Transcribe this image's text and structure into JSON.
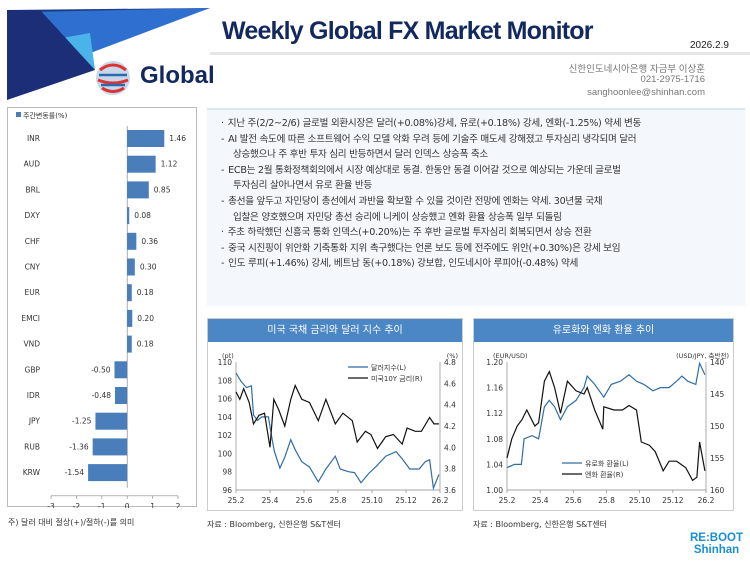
{
  "header": {
    "title": "Weekly Global FX Market Monitor",
    "date": "2026.2.9",
    "section": "Global",
    "contact": [
      "신한인도네시아은행 자금부 이상훈",
      "021-2975-1716",
      "sanghoonlee@shinhan.com"
    ]
  },
  "colors": {
    "navy": "#13285e",
    "bar": "#4a7ebb",
    "header_blue": "#4b86c5",
    "line_blue": "#2f6ea6",
    "line_black": "#111111"
  },
  "summary": [
    {
      "bullet": "·",
      "text": "지난 주(2/2~2/6) 글로벌 외환시장은 달러(+0.08%)강세, 유로(+0.18%) 강세, 엔화(-1.25%) 약세 변동"
    },
    {
      "bullet": "-",
      "text": "AI 발전 속도에 따른 소프트웨어 수익 모델 악화 우려 등에 기술주 매도세 강해졌고 투자심리 냉각되며 달러"
    },
    {
      "bullet": "",
      "text": "상승했으나 주 후반 투자 심리 반등하면서 달러 인덱스 상승폭 축소"
    },
    {
      "bullet": "-",
      "text": "ECB는 2월 통화정책회의에서 시장 예상대로 동결. 한동안 동결 이어갈 것으로 예상되는 가운데 글로벌"
    },
    {
      "bullet": "",
      "text": "투자심리 살아나면서 유로 환율 반등"
    },
    {
      "bullet": "-",
      "text": "총선을 앞두고 자민당이 총선에서 과반을 확보할 수 있을 것이란 전망에 엔화는 약세. 30년물 국채"
    },
    {
      "bullet": "",
      "text": "입찰은 양호했으며 자민당 총선 승리에 니케이 상승했고 엔화 환율 상승폭 일부 되돌림"
    },
    {
      "bullet": "·",
      "text": "주초 하락했던 신흥국 통화 인덱스(+0.20%)는 주 후반 글로벌 투자심리 회복되면서 상승 전환"
    },
    {
      "bullet": "-",
      "text": "중국 시진핑이 위안화 기축통화 지위 촉구했다는 언론 보도 등에 전주에도 위안(+0.30%)은 강세 보임"
    },
    {
      "bullet": "-",
      "text": "인도 루피(+1.46%) 강세, 베트남 동(+0.18%) 강보합, 인도네시아 루피아(-0.48%) 약세"
    }
  ],
  "left_note": "주) 달러 대비 절상(+)/절하(-)를 의미",
  "source": "자료 : Bloomberg, 신한은행 S&T센터",
  "logo": [
    "RE:BOOT",
    "Shinhan"
  ],
  "chart_data": [
    {
      "type": "bar",
      "orientation": "horizontal",
      "legend": "주간변동률(%)",
      "legend_position": "top-left",
      "categories": [
        "INR",
        "AUD",
        "BRL",
        "DXY",
        "CHF",
        "CNY",
        "EUR",
        "EMCI",
        "VND",
        "GBP",
        "IDR",
        "JPY",
        "RUB",
        "KRW"
      ],
      "values": [
        1.46,
        1.12,
        0.85,
        0.08,
        0.36,
        0.3,
        0.18,
        0.2,
        0.18,
        -0.5,
        -0.48,
        -1.25,
        -1.36,
        -1.54
      ],
      "labels": [
        "1.46",
        "1.12",
        "0.85",
        "0.08",
        "0.36",
        "0.30",
        "0.18",
        "0.20",
        "0.18",
        "-0.50",
        "-0.48",
        "-1.25",
        "-1.36",
        "-1.54"
      ],
      "xlim": [
        -3,
        2
      ],
      "xticks": [
        "-3",
        "-2",
        "-1",
        "0",
        "1",
        "2"
      ],
      "grid": false
    },
    {
      "type": "line",
      "title": "미국 국채 금리와 달러 지수 추이",
      "ylabel_left": "(pt)",
      "ylabel_right": "(%)",
      "ylim_left": [
        96,
        110
      ],
      "ylim_right": [
        3.6,
        4.8
      ],
      "yticks_left": [
        "110",
        "108",
        "106",
        "104",
        "102",
        "100",
        "98",
        "96"
      ],
      "yticks_right": [
        "4.8",
        "4.6",
        "4.4",
        "4.2",
        "4.0",
        "3.8",
        "3.6"
      ],
      "xticks": [
        "25.2",
        "25.4",
        "25.6",
        "25.8",
        "25.10",
        "25.12",
        "26.2"
      ],
      "legend_position": "top-right",
      "series": [
        {
          "name": "달러지수(L)",
          "axis": "left",
          "color": "#2f6ea6",
          "points": [
            [
              "2025-02-01",
              108.8
            ],
            [
              "2025-02-10",
              107.9
            ],
            [
              "2025-02-20",
              107.2
            ],
            [
              "2025-03-01",
              107.4
            ],
            [
              "2025-03-05",
              104.2
            ],
            [
              "2025-03-12",
              103.6
            ],
            [
              "2025-03-20",
              104.0
            ],
            [
              "2025-04-01",
              104.0
            ],
            [
              "2025-04-08",
              101.5
            ],
            [
              "2025-04-12",
              100.2
            ],
            [
              "2025-04-22",
              98.4
            ],
            [
              "2025-05-01",
              99.6
            ],
            [
              "2025-05-12",
              101.5
            ],
            [
              "2025-05-20",
              100.4
            ],
            [
              "2025-06-01",
              99.1
            ],
            [
              "2025-06-15",
              98.5
            ],
            [
              "2025-07-01",
              96.9
            ],
            [
              "2025-07-15",
              98.3
            ],
            [
              "2025-08-01",
              99.7
            ],
            [
              "2025-08-10",
              98.3
            ],
            [
              "2025-08-25",
              98.0
            ],
            [
              "2025-09-05",
              97.9
            ],
            [
              "2025-09-17",
              96.8
            ],
            [
              "2025-10-01",
              97.8
            ],
            [
              "2025-10-15",
              98.6
            ],
            [
              "2025-11-01",
              99.7
            ],
            [
              "2025-11-20",
              100.2
            ],
            [
              "2025-12-01",
              99.4
            ],
            [
              "2025-12-15",
              98.3
            ],
            [
              "2026-01-01",
              98.3
            ],
            [
              "2026-01-12",
              99.1
            ],
            [
              "2026-01-20",
              99.3
            ],
            [
              "2026-01-27",
              96.2
            ],
            [
              "2026-02-06",
              97.7
            ]
          ]
        },
        {
          "name": "미국10Y 금리(R)",
          "axis": "right",
          "color": "#111111",
          "points": [
            [
              "2025-02-01",
              4.52
            ],
            [
              "2025-02-08",
              4.45
            ],
            [
              "2025-02-15",
              4.55
            ],
            [
              "2025-02-25",
              4.42
            ],
            [
              "2025-03-05",
              4.22
            ],
            [
              "2025-03-15",
              4.3
            ],
            [
              "2025-03-25",
              4.32
            ],
            [
              "2025-04-04",
              4.0
            ],
            [
              "2025-04-11",
              4.45
            ],
            [
              "2025-04-20",
              4.35
            ],
            [
              "2025-05-01",
              4.2
            ],
            [
              "2025-05-12",
              4.45
            ],
            [
              "2025-05-20",
              4.58
            ],
            [
              "2025-06-01",
              4.45
            ],
            [
              "2025-06-15",
              4.42
            ],
            [
              "2025-07-01",
              4.25
            ],
            [
              "2025-07-15",
              4.45
            ],
            [
              "2025-08-01",
              4.22
            ],
            [
              "2025-08-15",
              4.32
            ],
            [
              "2025-09-01",
              4.25
            ],
            [
              "2025-09-10",
              4.05
            ],
            [
              "2025-09-25",
              4.15
            ],
            [
              "2025-10-05",
              4.12
            ],
            [
              "2025-10-17",
              3.99
            ],
            [
              "2025-11-01",
              4.1
            ],
            [
              "2025-11-15",
              4.12
            ],
            [
              "2025-12-01",
              4.03
            ],
            [
              "2025-12-10",
              4.18
            ],
            [
              "2025-12-25",
              4.15
            ],
            [
              "2026-01-05",
              4.15
            ],
            [
              "2026-01-20",
              4.28
            ],
            [
              "2026-01-28",
              4.22
            ],
            [
              "2026-02-06",
              4.22
            ]
          ]
        }
      ]
    },
    {
      "type": "line",
      "title": "유로화와 엔화 환율 추이",
      "ylabel_left": "(EUR/USD)",
      "ylabel_right": "(USD/JPY, 축반전)",
      "ylim_left": [
        1.0,
        1.2
      ],
      "ylim_right": [
        160,
        140
      ],
      "right_axis_inverted": true,
      "yticks_left": [
        "1.20",
        "1.16",
        "1.12",
        "1.08",
        "1.04",
        "1.00"
      ],
      "yticks_right": [
        "140",
        "145",
        "150",
        "155",
        "160"
      ],
      "xticks": [
        "25.2",
        "25.4",
        "25.6",
        "25.8",
        "25.10",
        "25.12",
        "26.2"
      ],
      "legend_position": "bottom-center",
      "series": [
        {
          "name": "유로화 환율(L)",
          "axis": "left",
          "color": "#2f6ea6",
          "points": [
            [
              "2025-02-01",
              1.035
            ],
            [
              "2025-02-15",
              1.04
            ],
            [
              "2025-02-28",
              1.04
            ],
            [
              "2025-03-05",
              1.08
            ],
            [
              "2025-03-20",
              1.085
            ],
            [
              "2025-04-01",
              1.08
            ],
            [
              "2025-04-12",
              1.13
            ],
            [
              "2025-04-21",
              1.14
            ],
            [
              "2025-05-01",
              1.13
            ],
            [
              "2025-05-12",
              1.11
            ],
            [
              "2025-05-25",
              1.13
            ],
            [
              "2025-06-10",
              1.14
            ],
            [
              "2025-06-25",
              1.16
            ],
            [
              "2025-07-01",
              1.178
            ],
            [
              "2025-07-15",
              1.165
            ],
            [
              "2025-08-01",
              1.145
            ],
            [
              "2025-08-15",
              1.165
            ],
            [
              "2025-09-01",
              1.17
            ],
            [
              "2025-09-17",
              1.18
            ],
            [
              "2025-10-01",
              1.17
            ],
            [
              "2025-10-15",
              1.165
            ],
            [
              "2025-11-01",
              1.155
            ],
            [
              "2025-11-15",
              1.16
            ],
            [
              "2025-12-01",
              1.16
            ],
            [
              "2025-12-15",
              1.17
            ],
            [
              "2025-12-25",
              1.178
            ],
            [
              "2026-01-05",
              1.17
            ],
            [
              "2026-01-20",
              1.165
            ],
            [
              "2026-01-27",
              1.198
            ],
            [
              "2026-02-06",
              1.18
            ]
          ]
        },
        {
          "name": "엔화 환율(R)",
          "axis": "right",
          "color": "#111111",
          "points": [
            [
              "2025-02-01",
              155
            ],
            [
              "2025-02-10",
              152
            ],
            [
              "2025-02-20",
              150
            ],
            [
              "2025-03-01",
              149
            ],
            [
              "2025-03-10",
              147.5
            ],
            [
              "2025-03-25",
              150
            ],
            [
              "2025-04-01",
              149.5
            ],
            [
              "2025-04-12",
              143
            ],
            [
              "2025-04-21",
              141.5
            ],
            [
              "2025-05-01",
              144
            ],
            [
              "2025-05-12",
              148
            ],
            [
              "2025-05-25",
              143
            ],
            [
              "2025-06-10",
              144.5
            ],
            [
              "2025-06-25",
              145
            ],
            [
              "2025-07-01",
              144
            ],
            [
              "2025-07-15",
              147.5
            ],
            [
              "2025-07-30",
              150.5
            ],
            [
              "2025-08-01",
              147
            ],
            [
              "2025-08-20",
              147.5
            ],
            [
              "2025-09-05",
              147.5
            ],
            [
              "2025-09-17",
              146.8
            ],
            [
              "2025-10-01",
              147.5
            ],
            [
              "2025-10-10",
              152.5
            ],
            [
              "2025-10-25",
              153
            ],
            [
              "2025-11-05",
              154
            ],
            [
              "2025-11-20",
              157
            ],
            [
              "2025-12-01",
              155.5
            ],
            [
              "2025-12-15",
              155.5
            ],
            [
              "2026-01-01",
              156.5
            ],
            [
              "2026-01-14",
              158.5
            ],
            [
              "2026-01-22",
              158
            ],
            [
              "2026-01-27",
              152.5
            ],
            [
              "2026-02-06",
              157
            ]
          ]
        }
      ]
    }
  ]
}
